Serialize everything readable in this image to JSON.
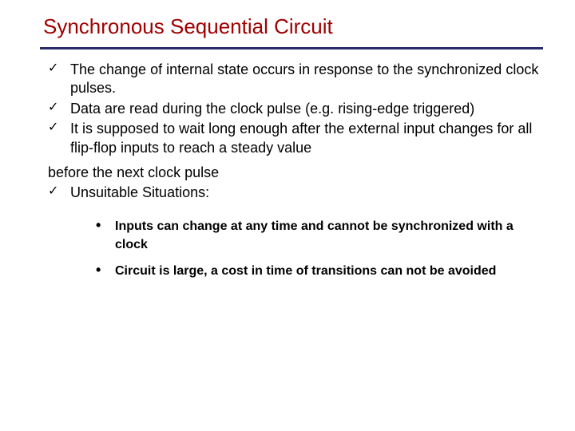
{
  "title": "Synchronous Sequential Circuit",
  "colors": {
    "title": "#a00000",
    "divider": "#2a2a6a",
    "text": "#000000",
    "background": "#ffffff"
  },
  "typography": {
    "title_font": "Comic Sans MS",
    "title_fontsize": 26,
    "body_font": "Comic Sans MS",
    "body_fontsize": 18,
    "sub_font": "Arial",
    "sub_fontsize": 16,
    "sub_fontweight": "bold"
  },
  "bullets": [
    "The change of internal state occurs in response to the synchronized clock pulses.",
    "Data are read during the clock pulse (e.g. rising-edge triggered)",
    "It is supposed to wait long enough after the external input changes for all flip-flop inputs to reach a steady value"
  ],
  "before_line": "before the next clock pulse",
  "bullet4": "Unsuitable Situations:",
  "sub_bullets": [
    "Inputs can change at any time and cannot be synchronized with a clock",
    "Circuit is large, a cost in time of transitions can not be avoided"
  ],
  "markers": {
    "check": "✓",
    "dot": "•"
  }
}
